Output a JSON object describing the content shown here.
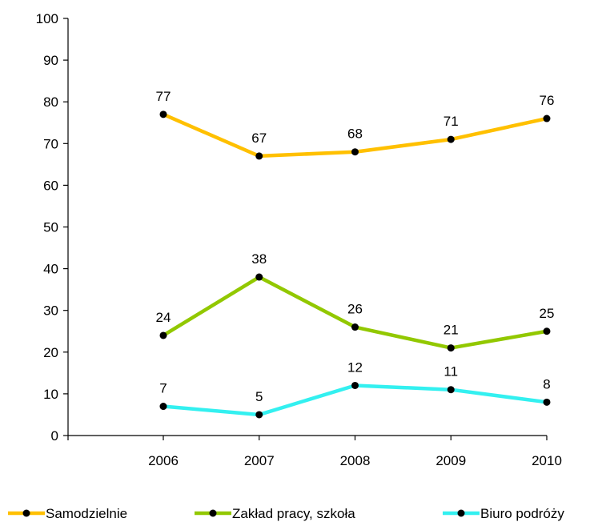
{
  "chart_data": {
    "type": "line",
    "title": "",
    "xlabel": "",
    "ylabel": "",
    "ylim": [
      0,
      100
    ],
    "yticks": [
      0,
      10,
      20,
      30,
      40,
      50,
      60,
      70,
      80,
      90,
      100
    ],
    "categories": [
      "2006",
      "2007",
      "2008",
      "2009",
      "2010"
    ],
    "grid": false,
    "legend_position": "bottom",
    "series": [
      {
        "name": "Samodzielnie",
        "values": [
          77,
          67,
          68,
          71,
          76
        ],
        "color": "#FFC000"
      },
      {
        "name": "Zakład pracy, szkoła",
        "values": [
          24,
          38,
          26,
          21,
          25
        ],
        "color": "#92C800"
      },
      {
        "name": "Biuro podróży",
        "values": [
          7,
          5,
          12,
          11,
          8
        ],
        "color": "#33F0F0"
      }
    ]
  }
}
